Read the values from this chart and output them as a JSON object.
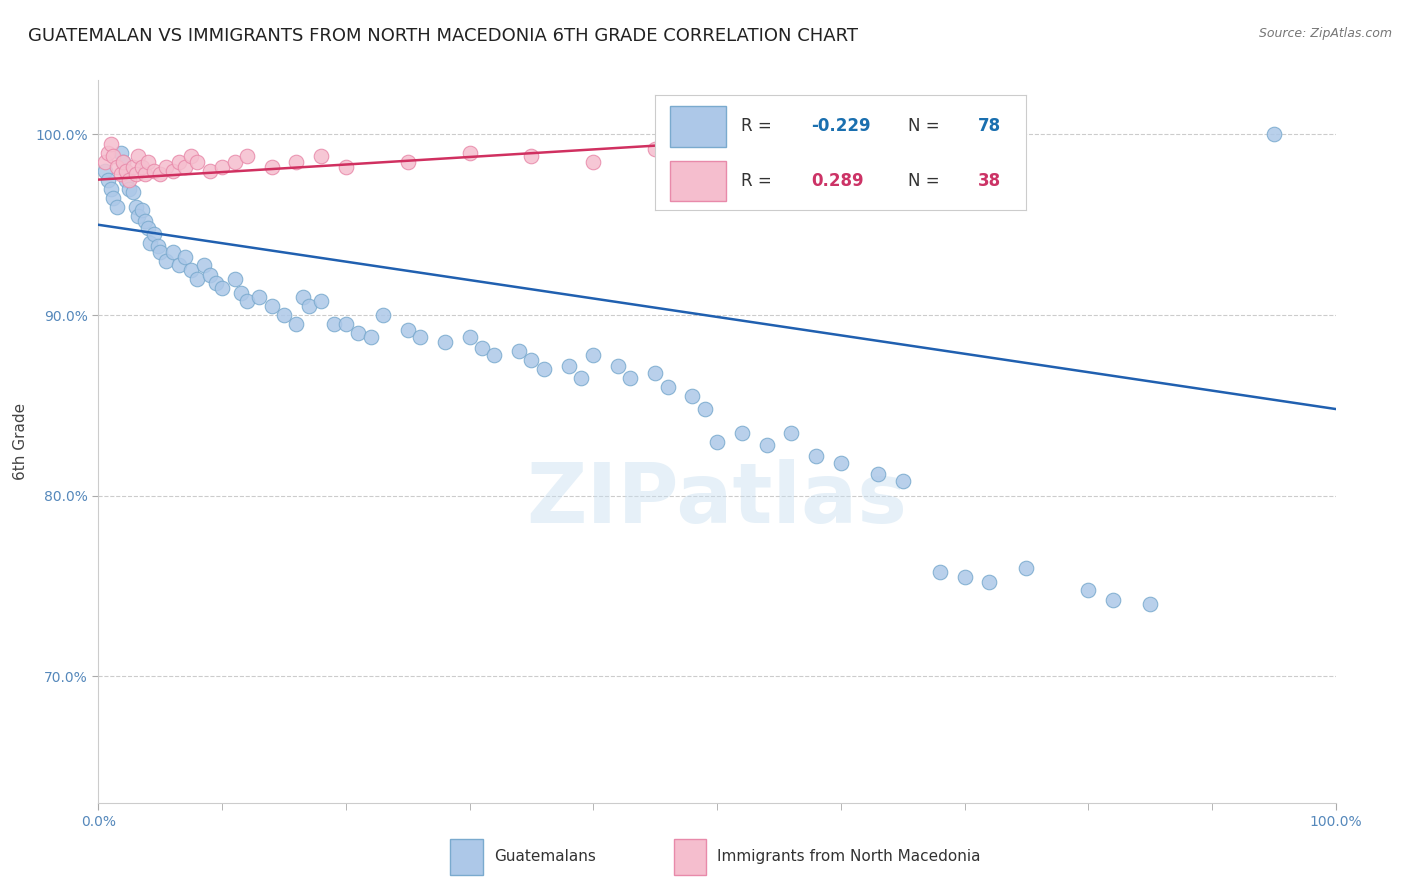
{
  "title": "GUATEMALAN VS IMMIGRANTS FROM NORTH MACEDONIA 6TH GRADE CORRELATION CHART",
  "source": "Source: ZipAtlas.com",
  "ylabel": "6th Grade",
  "xlim": [
    0.0,
    1.0
  ],
  "ylim": [
    0.63,
    1.03
  ],
  "blue_R": -0.229,
  "blue_N": 78,
  "pink_R": 0.289,
  "pink_N": 38,
  "blue_color": "#adc8e8",
  "blue_edge_color": "#7aaace",
  "pink_color": "#f5bece",
  "pink_edge_color": "#e88aaa",
  "blue_line_color": "#2060b0",
  "pink_line_color": "#d03060",
  "legend_R_color_blue": "#1a6faf",
  "legend_R_color_pink": "#cc3366",
  "watermark": "ZIPatlas",
  "blue_scatter_x": [
    0.005,
    0.008,
    0.01,
    0.012,
    0.015,
    0.018,
    0.02,
    0.022,
    0.025,
    0.028,
    0.03,
    0.032,
    0.035,
    0.038,
    0.04,
    0.042,
    0.045,
    0.048,
    0.05,
    0.055,
    0.06,
    0.065,
    0.07,
    0.075,
    0.08,
    0.085,
    0.09,
    0.095,
    0.1,
    0.11,
    0.115,
    0.12,
    0.13,
    0.14,
    0.15,
    0.16,
    0.165,
    0.17,
    0.18,
    0.19,
    0.2,
    0.21,
    0.22,
    0.23,
    0.25,
    0.26,
    0.28,
    0.3,
    0.31,
    0.32,
    0.34,
    0.35,
    0.36,
    0.38,
    0.39,
    0.4,
    0.42,
    0.43,
    0.45,
    0.46,
    0.48,
    0.49,
    0.5,
    0.52,
    0.54,
    0.56,
    0.58,
    0.6,
    0.63,
    0.65,
    0.68,
    0.7,
    0.72,
    0.75,
    0.8,
    0.82,
    0.85,
    0.95
  ],
  "blue_scatter_y": [
    0.98,
    0.975,
    0.97,
    0.965,
    0.96,
    0.99,
    0.985,
    0.975,
    0.97,
    0.968,
    0.96,
    0.955,
    0.958,
    0.952,
    0.948,
    0.94,
    0.945,
    0.938,
    0.935,
    0.93,
    0.935,
    0.928,
    0.932,
    0.925,
    0.92,
    0.928,
    0.922,
    0.918,
    0.915,
    0.92,
    0.912,
    0.908,
    0.91,
    0.905,
    0.9,
    0.895,
    0.91,
    0.905,
    0.908,
    0.895,
    0.895,
    0.89,
    0.888,
    0.9,
    0.892,
    0.888,
    0.885,
    0.888,
    0.882,
    0.878,
    0.88,
    0.875,
    0.87,
    0.872,
    0.865,
    0.878,
    0.872,
    0.865,
    0.868,
    0.86,
    0.855,
    0.848,
    0.83,
    0.835,
    0.828,
    0.835,
    0.822,
    0.818,
    0.812,
    0.808,
    0.758,
    0.755,
    0.752,
    0.76,
    0.748,
    0.742,
    0.74,
    1.0
  ],
  "pink_scatter_x": [
    0.005,
    0.008,
    0.01,
    0.012,
    0.015,
    0.018,
    0.02,
    0.022,
    0.025,
    0.028,
    0.03,
    0.032,
    0.035,
    0.038,
    0.04,
    0.045,
    0.05,
    0.055,
    0.06,
    0.065,
    0.07,
    0.075,
    0.08,
    0.09,
    0.1,
    0.11,
    0.12,
    0.14,
    0.16,
    0.18,
    0.2,
    0.25,
    0.3,
    0.35,
    0.4,
    0.45,
    0.5,
    0.55
  ],
  "pink_scatter_y": [
    0.985,
    0.99,
    0.995,
    0.988,
    0.982,
    0.978,
    0.985,
    0.98,
    0.975,
    0.982,
    0.978,
    0.988,
    0.982,
    0.978,
    0.985,
    0.98,
    0.978,
    0.982,
    0.98,
    0.985,
    0.982,
    0.988,
    0.985,
    0.98,
    0.982,
    0.985,
    0.988,
    0.982,
    0.985,
    0.988,
    0.982,
    0.985,
    0.99,
    0.988,
    0.985,
    0.992,
    0.988,
    0.99
  ],
  "blue_trend_x": [
    0.0,
    1.0
  ],
  "blue_trend_y_start": 0.95,
  "blue_trend_y_end": 0.848,
  "pink_trend_x": [
    0.0,
    0.55
  ],
  "pink_trend_y_start": 0.975,
  "pink_trend_y_end": 0.998,
  "grid_color": "#cccccc",
  "background_color": "#ffffff",
  "title_fontsize": 13,
  "axis_label_fontsize": 11,
  "tick_fontsize": 10,
  "legend_fontsize": 13
}
